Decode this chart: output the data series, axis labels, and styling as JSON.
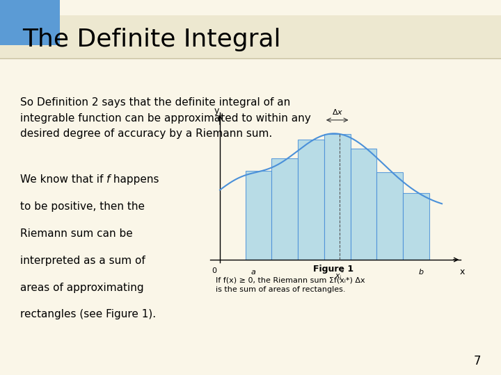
{
  "title": "The Definite Integral",
  "title_bg_color": "#5B9BD5",
  "slide_bg_color": "#FAF6E8",
  "title_color": "#000000",
  "para1": "So Definition 2 says that the definite integral of an\nintegrable function can be approximated to within any\ndesired degree of accuracy by a Riemann sum.",
  "figure_caption": "Figure 1",
  "figure_note": "If f(x) ≥ 0, the Riemann sum Σf(xᵢ*) Δx\nis the sum of areas of rectangles.",
  "page_number": "7",
  "rect_color": "#ADD8E6",
  "rect_edge_color": "#4A90D9",
  "curve_color": "#4A90D9",
  "text_color": "#000000",
  "axis_label_color": "#000000",
  "title_band_color": "#EDE8D0",
  "title_line_color": "#C8C0A0"
}
